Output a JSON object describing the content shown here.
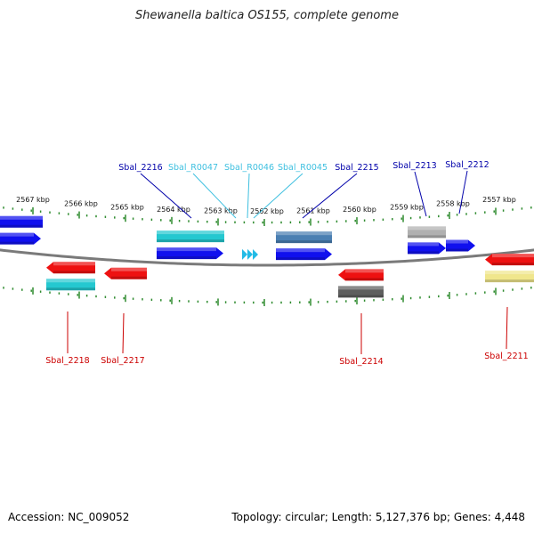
{
  "title": "Shewanella baltica OS155, complete genome",
  "footer": {
    "accession": "Accession: NC_009052",
    "topology": "Topology: circular; Length: 5,127,376 bp; Genes: 4,448"
  },
  "colors": {
    "backbone": "#7a7a7a",
    "ticks": "#2e8b2e",
    "top_label": "#0000aa",
    "rna_label": "#3fc0e0",
    "bottom_label": "#cc0000"
  },
  "tick_labels": [
    "2567 kbp",
    "2566 kbp",
    "2565 kbp",
    "2564 kbp",
    "2563 kbp",
    "2562 kbp",
    "2561 kbp",
    "2560 kbp",
    "2559 kbp",
    "2558 kbp",
    "2557 kbp"
  ],
  "top_labels": [
    {
      "text": "Sbal_2216",
      "kind": "gene"
    },
    {
      "text": "Sbal_R0047",
      "kind": "rna"
    },
    {
      "text": "Sbal_R0046",
      "kind": "rna"
    },
    {
      "text": "Sbal_R0045",
      "kind": "rna"
    },
    {
      "text": "Sbal_2215",
      "kind": "gene"
    },
    {
      "text": "Sbal_2213",
      "kind": "gene"
    },
    {
      "text": "Sbal_2212",
      "kind": "gene"
    }
  ],
  "bottom_labels": [
    {
      "text": "Sbal_2218"
    },
    {
      "text": "Sbal_2217"
    },
    {
      "text": "Sbal_2214"
    },
    {
      "text": "Sbal_2211"
    }
  ]
}
